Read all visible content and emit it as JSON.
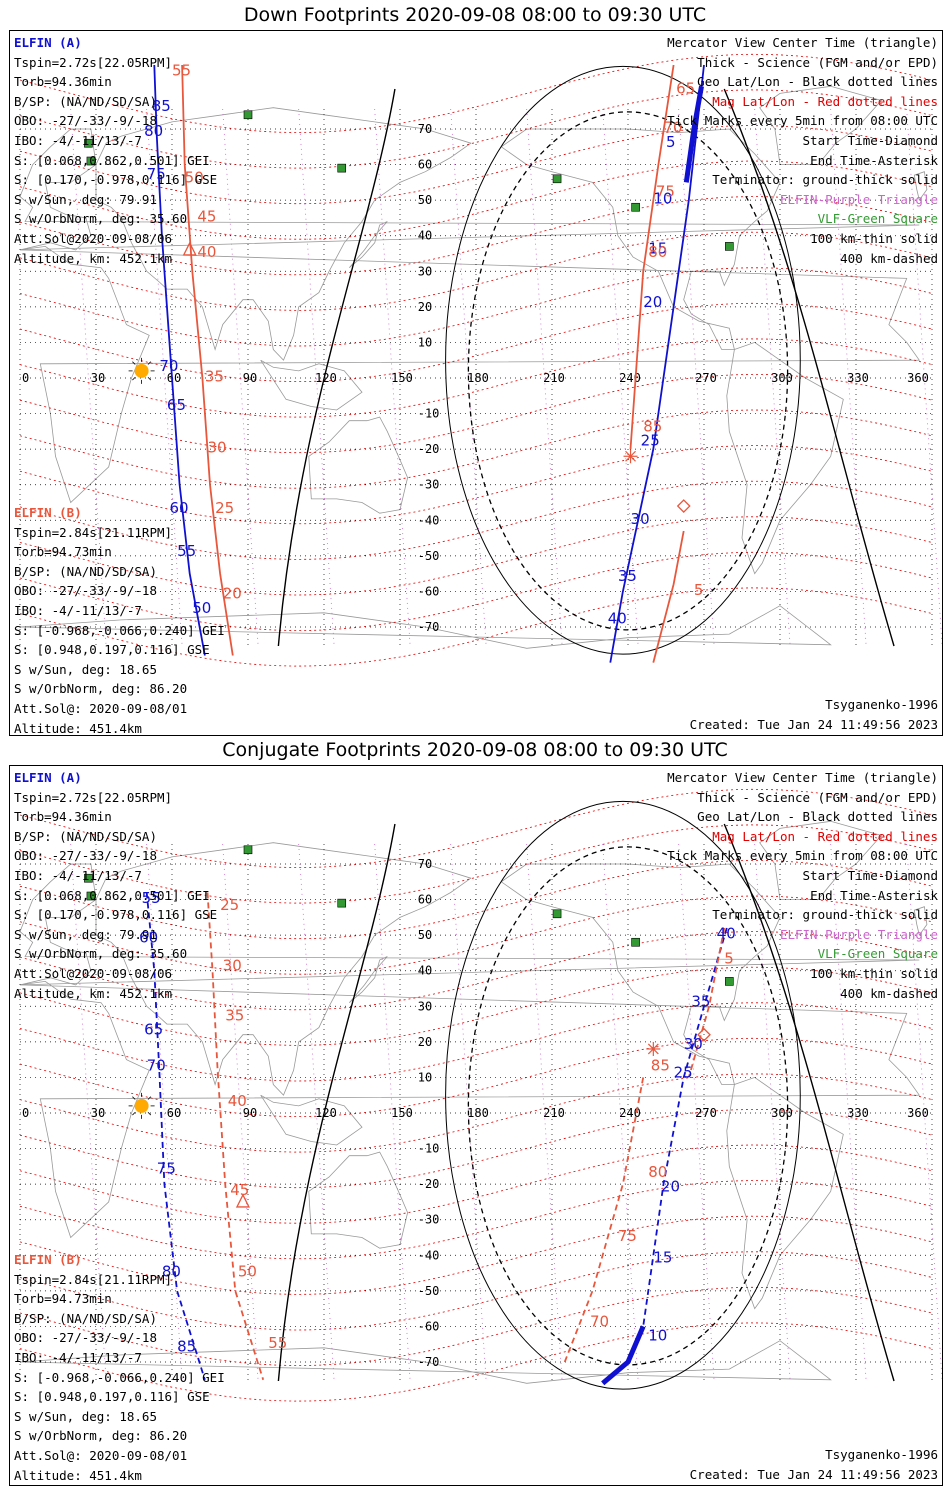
{
  "colors": {
    "sc_a": "#1010d0",
    "sc_b": "#e8573c",
    "mag_grid": "#e00000",
    "geo_grid": "#000000",
    "elfin_purple": "#cc66cc",
    "vlf_green": "#339933",
    "map_gray": "#999999",
    "sun": "#ffaa00"
  },
  "common": {
    "x_ticks": [
      "0",
      "30",
      "60",
      "90",
      "120",
      "150",
      "180",
      "210",
      "240",
      "270",
      "300",
      "330",
      "360"
    ],
    "y_ticks": [
      "70",
      "60",
      "50",
      "40",
      "30",
      "20",
      "10",
      "0",
      "-10",
      "-20",
      "-30",
      "-40",
      "-50",
      "-60",
      "-70"
    ],
    "legend": [
      "Mercator View Center Time (triangle)",
      "Thick - Science (FGM and/or EPD)",
      "Geo Lat/Lon - Black dotted lines",
      "Mag Lat/Lon - Red dotted lines",
      "Tick Marks every 5min from 08:00 UTC",
      "Start Time-Diamond",
      "End Time-Asterisk",
      "Terminator: ground-thick solid",
      "ELFIN-Purple Triangle",
      "VLF-Green Square",
      "100 km-thin solid",
      "400 km-dashed"
    ],
    "elfin_a": [
      "ELFIN (A)",
      "Tspin=2.72s[22.05RPM]",
      "Torb=94.36min",
      "B/SP: (NA/ND/SD/SA)",
      "OBO: -27/-33/-9/-18",
      "IBO: -4/-11/13/-7",
      "S: [0.068,0.862,0.501] GEI",
      "S: [0.170,-0.978,0.116] GSE",
      "S w/Sun, deg: 79.91",
      "S w/OrbNorm, deg: 35.60",
      "Att.Sol@2020-09-08/06",
      "Altitude, km: 452.1km"
    ],
    "elfin_b": [
      "ELFIN (B)",
      "Tspin=2.84s[21.11RPM]",
      "Torb=94.73min",
      "B/SP: (NA/ND/SD/SA)",
      "OBO: -27/-33/-9/-18",
      "IBO: -4/-11/13/-7",
      "S: [-0.968,-0.066,0.240] GEI",
      "S: [0.948,0.197,0.116] GSE",
      "S w/Sun, deg: 18.65",
      "S w/OrbNorm, deg: 86.20",
      "Att.Sol@: 2020-09-08/01",
      "Altitude: 451.4km"
    ],
    "model": "Tsyganenko-1996",
    "created": "Created: Tue Jan 24 11:49:56 2023"
  },
  "panel1": {
    "title": "Down Footprints 2020-09-08 08:00 to 09:30 UTC",
    "a_labels": [
      {
        "t": "85",
        "lon": 52,
        "lat": 75
      },
      {
        "t": "80",
        "lon": 49,
        "lat": 68
      },
      {
        "t": "75",
        "lon": 50,
        "lat": 56
      },
      {
        "t": "70",
        "lon": 55,
        "lat": 2
      },
      {
        "t": "65",
        "lon": 58,
        "lat": -9
      },
      {
        "t": "60",
        "lon": 59,
        "lat": -38
      },
      {
        "t": "55",
        "lon": 62,
        "lat": -50
      },
      {
        "t": "50",
        "lon": 68,
        "lat": -66
      },
      {
        "t": "5",
        "lon": 255,
        "lat": 65
      },
      {
        "t": "10",
        "lon": 250,
        "lat": 49
      },
      {
        "t": "15",
        "lon": 248,
        "lat": 35
      },
      {
        "t": "20",
        "lon": 246,
        "lat": 20
      },
      {
        "t": "25",
        "lon": 245,
        "lat": -19
      },
      {
        "t": "30",
        "lon": 241,
        "lat": -41
      },
      {
        "t": "35",
        "lon": 236,
        "lat": -57
      },
      {
        "t": "40",
        "lon": 232,
        "lat": -69
      }
    ],
    "b_labels": [
      {
        "t": "55",
        "lon": 60,
        "lat": 85
      },
      {
        "t": "50",
        "lon": 65,
        "lat": 55
      },
      {
        "t": "45",
        "lon": 70,
        "lat": 44
      },
      {
        "t": "40",
        "lon": 70,
        "lat": 34
      },
      {
        "t": "35",
        "lon": 73,
        "lat": -1
      },
      {
        "t": "30",
        "lon": 74,
        "lat": -21
      },
      {
        "t": "25",
        "lon": 77,
        "lat": -38
      },
      {
        "t": "20",
        "lon": 80,
        "lat": -62
      },
      {
        "t": "65",
        "lon": 259,
        "lat": 80
      },
      {
        "t": "70",
        "lon": 254,
        "lat": 69
      },
      {
        "t": "75",
        "lon": 251,
        "lat": 51
      },
      {
        "t": "80",
        "lon": 248,
        "lat": 34
      },
      {
        "t": "85",
        "lon": 246,
        "lat": -15
      },
      {
        "t": "5",
        "lon": 266,
        "lat": -61
      }
    ]
  },
  "panel2": {
    "title": "Conjugate Footprints 2020-09-08 08:00 to 09:30 UTC",
    "a_labels": [
      {
        "t": "55",
        "lon": 48,
        "lat": 59
      },
      {
        "t": "60",
        "lon": 47,
        "lat": 48
      },
      {
        "t": "65",
        "lon": 49,
        "lat": 22
      },
      {
        "t": "70",
        "lon": 50,
        "lat": 12
      },
      {
        "t": "75",
        "lon": 54,
        "lat": -17
      },
      {
        "t": "80",
        "lon": 56,
        "lat": -46
      },
      {
        "t": "85",
        "lon": 62,
        "lat": -67
      },
      {
        "t": "40",
        "lon": 275,
        "lat": 49
      },
      {
        "t": "35",
        "lon": 265,
        "lat": 30
      },
      {
        "t": "30",
        "lon": 262,
        "lat": 18
      },
      {
        "t": "25",
        "lon": 258,
        "lat": 10
      },
      {
        "t": "20",
        "lon": 253,
        "lat": -22
      },
      {
        "t": "15",
        "lon": 250,
        "lat": -42
      },
      {
        "t": "10",
        "lon": 248,
        "lat": -64
      }
    ],
    "b_labels": [
      {
        "t": "25",
        "lon": 79,
        "lat": 57
      },
      {
        "t": "30",
        "lon": 80,
        "lat": 40
      },
      {
        "t": "35",
        "lon": 81,
        "lat": 26
      },
      {
        "t": "40",
        "lon": 82,
        "lat": 2
      },
      {
        "t": "45",
        "lon": 83,
        "lat": -23
      },
      {
        "t": "50",
        "lon": 86,
        "lat": -46
      },
      {
        "t": "55",
        "lon": 98,
        "lat": -66
      },
      {
        "t": "5",
        "lon": 278,
        "lat": 42
      },
      {
        "t": "85",
        "lon": 249,
        "lat": 12
      },
      {
        "t": "80",
        "lon": 248,
        "lat": -18
      },
      {
        "t": "75",
        "lon": 236,
        "lat": -36
      },
      {
        "t": "70",
        "lon": 225,
        "lat": -60
      }
    ]
  }
}
